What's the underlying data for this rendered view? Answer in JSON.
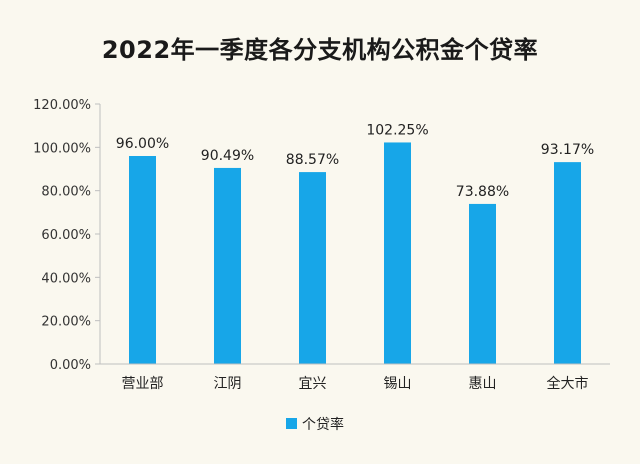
{
  "chart_data": {
    "type": "bar",
    "title": "2022年一季度各分支机构公积金个贷率",
    "categories": [
      "营业部",
      "江阴",
      "宜兴",
      "锡山",
      "惠山",
      "全大市"
    ],
    "series": [
      {
        "name": "个贷率",
        "values": [
          96.0,
          90.49,
          88.57,
          102.25,
          73.88,
          93.17
        ],
        "labels": [
          "96.00%",
          "90.49%",
          "88.57%",
          "102.25%",
          "73.88%",
          "93.17%"
        ],
        "color": "#17a6e8"
      }
    ],
    "yticks": [
      "0.00%",
      "20.00%",
      "40.00%",
      "60.00%",
      "80.00%",
      "100.00%",
      "120.00%"
    ],
    "ylim": [
      0,
      120
    ],
    "grid": false,
    "legend_position": "bottom-center",
    "axis_color": "#bfbfbf"
  }
}
